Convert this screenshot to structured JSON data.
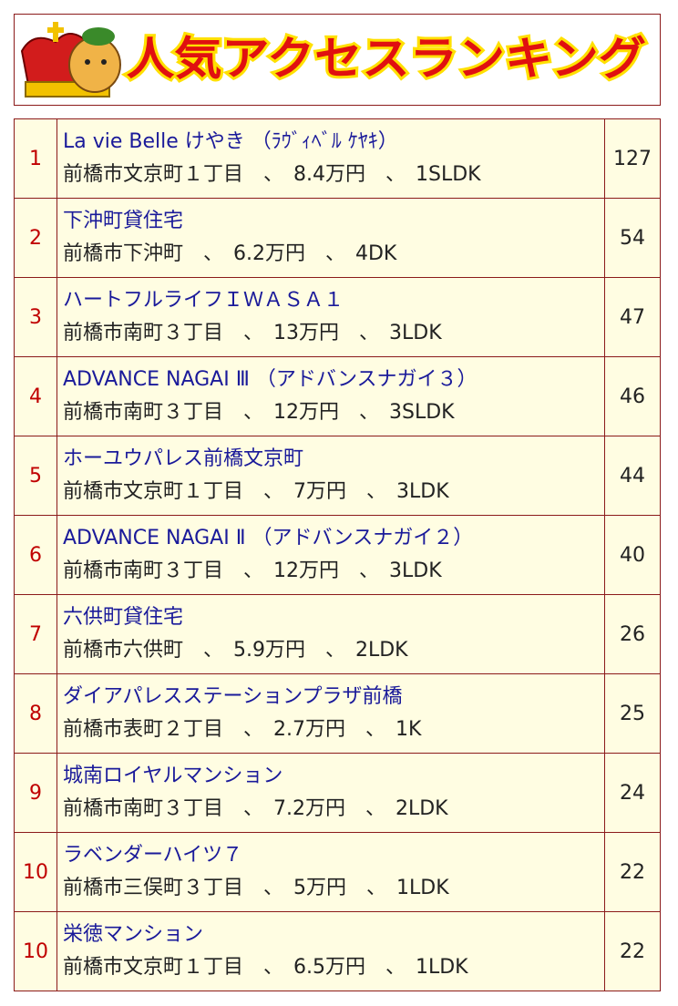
{
  "header": {
    "title": "人気アクセスランキング"
  },
  "table": {
    "rows": [
      {
        "rank": 1,
        "name": "La vie Belle けやき （ﾗｳﾞｨﾍﾞﾙ ｹﾔｷ）",
        "details": "前橋市文京町１丁目　、　8.4万円　、　1SLDK",
        "count": 127
      },
      {
        "rank": 2,
        "name": "下沖町貸住宅",
        "details": "前橋市下沖町　、　6.2万円　、　4DK",
        "count": 54
      },
      {
        "rank": 3,
        "name": "ハートフルライフＩＷＡＳＡ１",
        "details": "前橋市南町３丁目　、　13万円　、　3LDK",
        "count": 47
      },
      {
        "rank": 4,
        "name": "ADVANCE NAGAI Ⅲ （アドバンスナガイ３）",
        "details": "前橋市南町３丁目　、　12万円　、　3SLDK",
        "count": 46
      },
      {
        "rank": 5,
        "name": "ホーユウパレス前橋文京町",
        "details": "前橋市文京町１丁目　、　7万円　、　3LDK",
        "count": 44
      },
      {
        "rank": 6,
        "name": "ADVANCE NAGAI Ⅱ （アドバンスナガイ２）",
        "details": "前橋市南町３丁目　、　12万円　、　3LDK",
        "count": 40
      },
      {
        "rank": 7,
        "name": "六供町貸住宅",
        "details": "前橋市六供町　、　5.9万円　、　2LDK",
        "count": 26
      },
      {
        "rank": 8,
        "name": "ダイアパレスステーションプラザ前橋",
        "details": "前橋市表町２丁目　、　2.7万円　、　1K",
        "count": 25
      },
      {
        "rank": 9,
        "name": "城南ロイヤルマンション",
        "details": "前橋市南町３丁目　、　7.2万円　、　2LDK",
        "count": 24
      },
      {
        "rank": 10,
        "name": "ラベンダーハイツ７",
        "details": "前橋市三俣町３丁目　、　5万円　、　1LDK",
        "count": 22
      },
      {
        "rank": 10,
        "name": "栄徳マンション",
        "details": "前橋市文京町１丁目　、　6.5万円　、　1LDK",
        "count": 22
      }
    ]
  }
}
